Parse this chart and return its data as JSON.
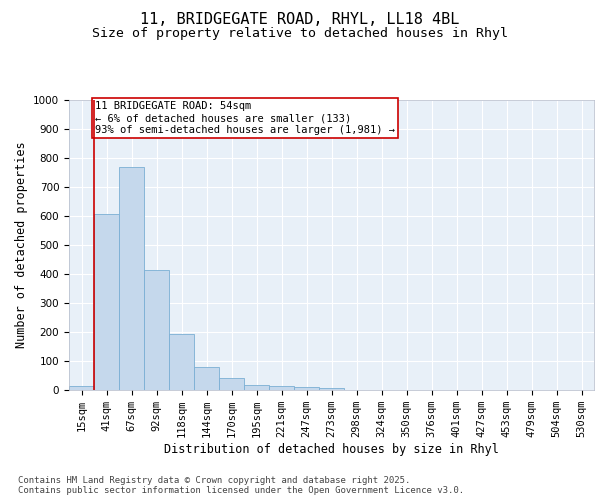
{
  "title_line1": "11, BRIDGEGATE ROAD, RHYL, LL18 4BL",
  "title_line2": "Size of property relative to detached houses in Rhyl",
  "xlabel": "Distribution of detached houses by size in Rhyl",
  "ylabel": "Number of detached properties",
  "bar_color": "#c5d8ec",
  "bar_edge_color": "#7aafd4",
  "categories": [
    "15sqm",
    "41sqm",
    "67sqm",
    "92sqm",
    "118sqm",
    "144sqm",
    "170sqm",
    "195sqm",
    "221sqm",
    "247sqm",
    "273sqm",
    "298sqm",
    "324sqm",
    "350sqm",
    "376sqm",
    "401sqm",
    "427sqm",
    "453sqm",
    "479sqm",
    "504sqm",
    "530sqm"
  ],
  "values": [
    13,
    608,
    770,
    413,
    192,
    78,
    40,
    17,
    15,
    11,
    8,
    0,
    0,
    0,
    0,
    0,
    0,
    0,
    0,
    0,
    0
  ],
  "ylim": [
    0,
    1000
  ],
  "yticks": [
    0,
    100,
    200,
    300,
    400,
    500,
    600,
    700,
    800,
    900,
    1000
  ],
  "property_line_x": 0.5,
  "property_line_color": "#cc0000",
  "annotation_text": "11 BRIDGEGATE ROAD: 54sqm\n← 6% of detached houses are smaller (133)\n93% of semi-detached houses are larger (1,981) →",
  "annotation_box_color": "#cc0000",
  "background_color": "#e8f0f8",
  "grid_color": "#ffffff",
  "footer_text": "Contains HM Land Registry data © Crown copyright and database right 2025.\nContains public sector information licensed under the Open Government Licence v3.0.",
  "title_fontsize": 11,
  "subtitle_fontsize": 9.5,
  "tick_fontsize": 7.5,
  "label_fontsize": 8.5,
  "annotation_fontsize": 7.5,
  "footer_fontsize": 6.5
}
